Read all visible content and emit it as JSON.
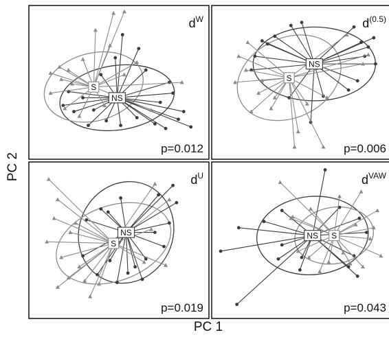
{
  "figure": {
    "x_axis_title": "PC 1",
    "y_axis_title": "PC 2"
  },
  "colors": {
    "ns": "#3a3a3a",
    "s": "#8a8a8a",
    "frame": "#000000"
  },
  "chart_data": [
    {
      "type": "scatter",
      "panel_label": {
        "base": "d",
        "sup": "W"
      },
      "annotation": "p=0.012",
      "legend_labels": [
        "S",
        "NS"
      ],
      "xlim": [
        0,
        10
      ],
      "ylim": [
        0,
        10
      ],
      "grid": false,
      "groups": [
        {
          "name": "NS",
          "centroid": [
            4.9,
            4.0
          ],
          "ellipse": {
            "rx": 3.2,
            "ry": 2.1,
            "rotation": -8
          },
          "points": [
            [
              5.2,
              8.1
            ],
            [
              6.1,
              7.2
            ],
            [
              4.8,
              6.6
            ],
            [
              7.8,
              5.0
            ],
            [
              8.0,
              4.3
            ],
            [
              8.6,
              3.1
            ],
            [
              9.0,
              2.1
            ],
            [
              8.3,
              2.6
            ],
            [
              7.0,
              2.3
            ],
            [
              6.0,
              2.7
            ],
            [
              5.1,
              2.2
            ],
            [
              4.3,
              2.5
            ],
            [
              3.3,
              2.2
            ],
            [
              2.5,
              3.1
            ],
            [
              1.9,
              3.5
            ],
            [
              2.2,
              4.4
            ],
            [
              3.0,
              4.0
            ],
            [
              3.6,
              3.2
            ],
            [
              7.3,
              3.7
            ],
            [
              7.6,
              2.0
            ],
            [
              4.0,
              5.5
            ],
            [
              6.5,
              5.8
            ]
          ]
        },
        {
          "name": "S",
          "centroid": [
            3.6,
            4.7
          ],
          "ellipse": {
            "rx": 2.8,
            "ry": 2.2,
            "rotation": -15
          },
          "points": [
            [
              4.7,
              9.5
            ],
            [
              5.3,
              9.6
            ],
            [
              3.7,
              8.4
            ],
            [
              4.5,
              7.4
            ],
            [
              1.2,
              5.6
            ],
            [
              1.8,
              5.2
            ],
            [
              2.2,
              5.8
            ],
            [
              8.5,
              5.0
            ],
            [
              1.2,
              4.3
            ],
            [
              2.0,
              3.3
            ],
            [
              2.8,
              2.8
            ],
            [
              4.2,
              3.5
            ],
            [
              5.3,
              5.5
            ],
            [
              6.0,
              6.3
            ],
            [
              1.7,
              6.0
            ],
            [
              3.0,
              6.5
            ],
            [
              6.8,
              3.2
            ],
            [
              2.4,
              4.9
            ]
          ]
        }
      ]
    },
    {
      "type": "scatter",
      "panel_label": {
        "base": "d",
        "sup": "(0.5)"
      },
      "annotation": "p=0.006",
      "legend_labels": [
        "S",
        "NS"
      ],
      "xlim": [
        0,
        10
      ],
      "ylim": [
        0,
        10
      ],
      "grid": false,
      "groups": [
        {
          "name": "NS",
          "centroid": [
            5.7,
            6.2
          ],
          "ellipse": {
            "rx": 3.4,
            "ry": 2.4,
            "rotation": 0
          },
          "points": [
            [
              8.7,
              7.3
            ],
            [
              9.0,
              7.9
            ],
            [
              8.5,
              6.7
            ],
            [
              9.1,
              6.2
            ],
            [
              7.9,
              8.6
            ],
            [
              3.1,
              7.5
            ],
            [
              2.4,
              6.7
            ],
            [
              2.2,
              5.8
            ],
            [
              3.5,
              8.0
            ],
            [
              4.4,
              8.7
            ],
            [
              8.1,
              5.1
            ],
            [
              7.6,
              4.5
            ],
            [
              6.2,
              4.1
            ],
            [
              5.5,
              2.4
            ],
            [
              4.3,
              4.0
            ],
            [
              5.0,
              8.9
            ],
            [
              2.8,
              7.7
            ],
            [
              8.3,
              7.6
            ]
          ]
        },
        {
          "name": "S",
          "centroid": [
            4.3,
            5.3
          ],
          "ellipse": {
            "rx": 3.0,
            "ry": 2.6,
            "rotation": -25
          },
          "points": [
            [
              1.5,
              6.7
            ],
            [
              1.9,
              5.8
            ],
            [
              2.0,
              7.6
            ],
            [
              1.3,
              5.0
            ],
            [
              2.8,
              5.1
            ],
            [
              3.5,
              4.0
            ],
            [
              4.6,
              0.8
            ],
            [
              6.2,
              0.8
            ],
            [
              4.8,
              1.8
            ],
            [
              6.4,
              4.0
            ],
            [
              2.2,
              3.1
            ],
            [
              8.7,
              6.8
            ],
            [
              8.4,
              6.2
            ],
            [
              7.5,
              8.1
            ],
            [
              3.3,
              3.3
            ],
            [
              5.3,
              3.6
            ],
            [
              2.6,
              4.3
            ]
          ]
        }
      ]
    },
    {
      "type": "scatter",
      "panel_label": {
        "base": "d",
        "sup": "U"
      },
      "annotation": "p=0.019",
      "legend_labels": [
        "S",
        "NS"
      ],
      "xlim": [
        0,
        10
      ],
      "ylim": [
        0,
        10
      ],
      "grid": false,
      "groups": [
        {
          "name": "NS",
          "centroid": [
            5.4,
            5.5
          ],
          "ellipse": {
            "rx": 2.6,
            "ry": 3.3,
            "rotation": 25
          },
          "points": [
            [
              8.0,
              8.5
            ],
            [
              7.2,
              7.9
            ],
            [
              5.1,
              7.7
            ],
            [
              4.0,
              7.0
            ],
            [
              3.2,
              6.3
            ],
            [
              4.4,
              6.8
            ],
            [
              8.2,
              7.4
            ],
            [
              7.8,
              6.1
            ],
            [
              7.5,
              4.6
            ],
            [
              5.5,
              2.9
            ],
            [
              6.3,
              2.5
            ],
            [
              4.9,
              2.3
            ],
            [
              3.8,
              2.8
            ],
            [
              3.0,
              4.0
            ],
            [
              6.5,
              3.8
            ],
            [
              7.0,
              5.5
            ],
            [
              5.9,
              3.3
            ],
            [
              4.5,
              3.7
            ]
          ]
        },
        {
          "name": "S",
          "centroid": [
            4.7,
            4.8
          ],
          "ellipse": {
            "rx": 3.3,
            "ry": 2.4,
            "rotation": -20
          },
          "points": [
            [
              1.1,
              8.9
            ],
            [
              1.6,
              7.6
            ],
            [
              1.0,
              4.9
            ],
            [
              2.3,
              5.5
            ],
            [
              2.8,
              3.3
            ],
            [
              2.2,
              2.6
            ],
            [
              1.6,
              2.0
            ],
            [
              3.4,
              1.4
            ],
            [
              7.8,
              7.6
            ],
            [
              7.0,
              8.6
            ],
            [
              6.4,
              3.6
            ],
            [
              7.6,
              3.4
            ],
            [
              6.8,
              5.7
            ],
            [
              3.9,
              2.2
            ],
            [
              2.6,
              6.1
            ],
            [
              1.4,
              6.4
            ],
            [
              1.8,
              3.9
            ],
            [
              3.1,
              2.4
            ]
          ]
        }
      ]
    },
    {
      "type": "scatter",
      "panel_label": {
        "base": "d",
        "sup": "VAW"
      },
      "annotation": "p=0.043",
      "legend_labels": [
        "NS",
        "S"
      ],
      "xlim": [
        0,
        10
      ],
      "ylim": [
        0,
        10
      ],
      "grid": false,
      "groups": [
        {
          "name": "NS",
          "centroid": [
            5.6,
            5.3
          ],
          "ellipse": {
            "rx": 3.1,
            "ry": 2.5,
            "rotation": -5
          },
          "points": [
            [
              6.3,
              9.5
            ],
            [
              0.5,
              4.3
            ],
            [
              1.5,
              5.8
            ],
            [
              3.9,
              6.9
            ],
            [
              8.2,
              6.4
            ],
            [
              7.9,
              4.0
            ],
            [
              7.6,
              3.3
            ],
            [
              8.1,
              2.7
            ],
            [
              5.0,
              3.9
            ],
            [
              4.9,
              3.1
            ],
            [
              3.7,
              3.8
            ],
            [
              3.9,
              4.7
            ],
            [
              2.9,
              6.2
            ],
            [
              1.4,
              0.9
            ],
            [
              7.1,
              7.1
            ],
            [
              8.6,
              5.5
            ]
          ]
        },
        {
          "name": "S",
          "centroid": [
            6.8,
            5.3
          ],
          "ellipse": {
            "rx": 2.2,
            "ry": 1.8,
            "rotation": -10
          },
          "points": [
            [
              3.8,
              8.7
            ],
            [
              4.5,
              6.5
            ],
            [
              8.3,
              8.1
            ],
            [
              9.2,
              6.9
            ],
            [
              9.0,
              5.8
            ],
            [
              8.8,
              5.1
            ],
            [
              9.4,
              4.0
            ],
            [
              8.4,
              3.3
            ],
            [
              7.7,
              3.5
            ],
            [
              6.0,
              3.0
            ],
            [
              5.4,
              3.9
            ],
            [
              4.8,
              4.3
            ],
            [
              4.4,
              6.4
            ],
            [
              5.5,
              7.0
            ],
            [
              7.1,
              7.8
            ],
            [
              8.0,
              6.0
            ],
            [
              7.3,
              4.2
            ],
            [
              6.5,
              3.6
            ]
          ]
        }
      ]
    }
  ]
}
